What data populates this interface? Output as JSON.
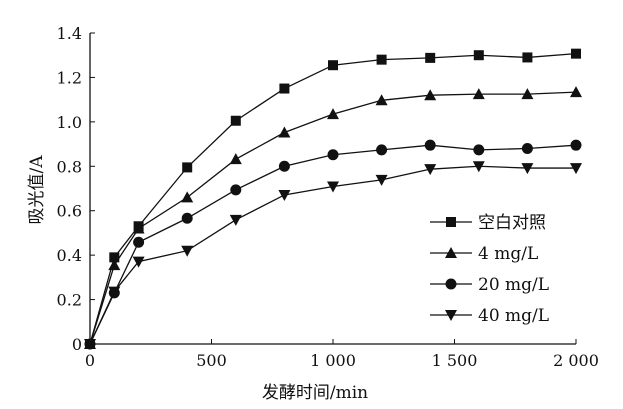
{
  "chart_data": {
    "type": "line",
    "title": "",
    "xlabel": "发酵时间/min",
    "ylabel": "吸光值/A",
    "xlim": [
      0,
      2000
    ],
    "ylim": [
      0,
      1.4
    ],
    "grid": false,
    "legend_position": "bottom-right",
    "x_ticks": [
      0,
      500,
      1000,
      1500,
      2000
    ],
    "x_tick_labels": [
      "0",
      "500",
      "1 000",
      "1 500",
      "2 000"
    ],
    "y_ticks": [
      0,
      0.2,
      0.4,
      0.6,
      0.8,
      1.0,
      1.2,
      1.4
    ],
    "y_tick_labels": [
      "0",
      "0.2",
      "0.4",
      "0.6",
      "0.8",
      "1.0",
      "1.2",
      "1.4"
    ],
    "x": [
      0,
      100,
      200,
      400,
      600,
      800,
      1000,
      1200,
      1400,
      1600,
      1800,
      2000
    ],
    "series": [
      {
        "name": "空白对照",
        "marker": "square",
        "values": [
          0,
          0.39,
          0.53,
          0.795,
          1.005,
          1.15,
          1.255,
          1.28,
          1.288,
          1.3,
          1.29,
          1.307
        ]
      },
      {
        "name": "4 mg/L",
        "marker": "triangle-up",
        "values": [
          0,
          0.355,
          0.52,
          0.66,
          0.832,
          0.952,
          1.035,
          1.097,
          1.12,
          1.125,
          1.125,
          1.134
        ]
      },
      {
        "name": "20 mg/L",
        "marker": "circle",
        "values": [
          0,
          0.23,
          0.458,
          0.566,
          0.694,
          0.8,
          0.852,
          0.874,
          0.895,
          0.874,
          0.88,
          0.895
        ]
      },
      {
        "name": "40 mg/L",
        "marker": "triangle-down",
        "values": [
          0,
          0.236,
          0.371,
          0.42,
          0.559,
          0.671,
          0.709,
          0.739,
          0.787,
          0.8,
          0.792,
          0.792
        ]
      }
    ],
    "color": "#111111"
  }
}
